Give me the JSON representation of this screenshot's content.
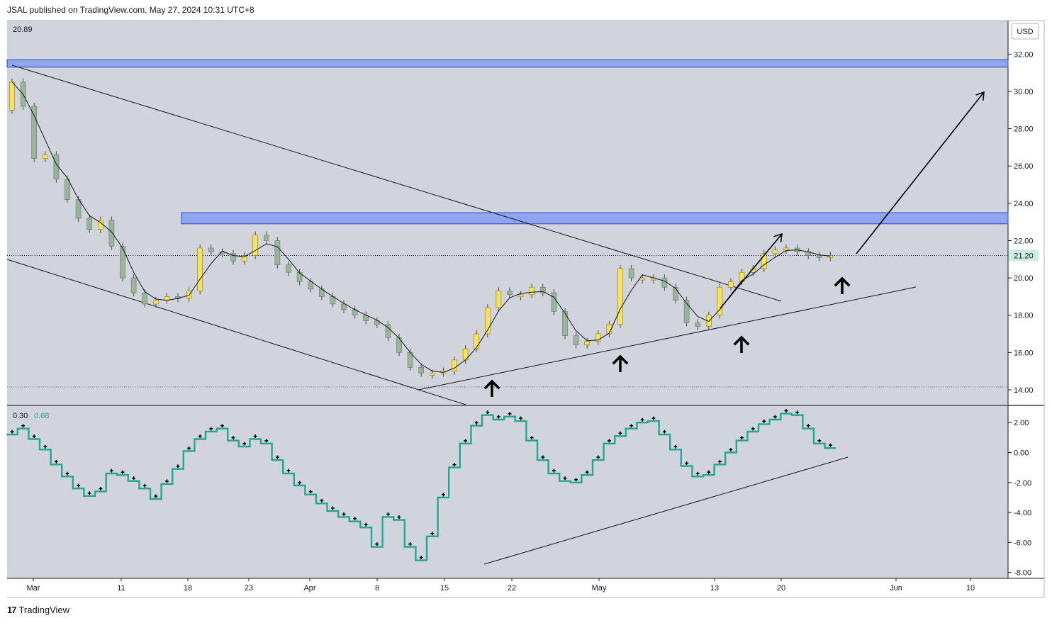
{
  "header": {
    "text": "JSAL published on TradingView.com, May 27, 2024 10:31 UTC+8"
  },
  "footer": {
    "brand": "TradingView",
    "logo_icon": "tradingview-logo-icon"
  },
  "colors": {
    "pane_bg": "#d1d4dc",
    "zone": "#8fa6ee",
    "zone_border": "#2b49c8",
    "up": "#f7e35a",
    "down": "#9bb39b",
    "indicator_line": "#22a68f",
    "grid_dotted": "#6b6b6b"
  },
  "price_pane": {
    "top_label": "20.89",
    "currency": "USD",
    "last_price": "21.20"
  },
  "indicator_pane": {
    "label_a": "0.30",
    "label_b": "0.68"
  },
  "chart_data": [
    {
      "type": "candlestick",
      "x_axis_labels": [
        "Mar",
        "11",
        "18",
        "23",
        "Apr",
        "8",
        "15",
        "22",
        "May",
        "13",
        "20",
        "Jun",
        "10"
      ],
      "y_ticks": [
        "32.00",
        "30.00",
        "28.00",
        "26.00",
        "24.00",
        "22.00",
        "20.00",
        "18.00",
        "16.00",
        "14.00"
      ],
      "ylim": [
        13.2,
        33.8
      ],
      "last_price": 21.2,
      "resistance_zones": [
        [
          31.3,
          31.7
        ],
        [
          22.9,
          23.5
        ]
      ],
      "close_series": [
        30.5,
        29.2,
        26.4,
        26.6,
        25.3,
        24.2,
        23.2,
        22.6,
        23.1,
        21.7,
        20.0,
        19.2,
        18.6,
        18.8,
        19.0,
        18.9,
        19.3,
        21.6,
        21.4,
        21.3,
        20.9,
        21.2,
        22.3,
        22.0,
        20.7,
        20.3,
        19.8,
        19.4,
        19.0,
        18.6,
        18.3,
        18.0,
        17.7,
        17.5,
        16.8,
        16.0,
        15.2,
        14.9,
        14.9,
        15.0,
        15.6,
        16.2,
        17.0,
        18.4,
        19.3,
        19.1,
        19.1,
        19.5,
        19.2,
        18.2,
        16.9,
        16.4,
        16.6,
        17.0,
        17.5,
        20.5,
        20.0,
        20.0,
        20.0,
        19.5,
        18.8,
        17.6,
        17.4,
        18.0,
        19.5,
        19.8,
        20.3,
        20.5,
        21.3,
        21.5,
        21.6,
        21.4,
        21.2,
        21.1,
        21.2
      ]
    },
    {
      "type": "line",
      "name": "",
      "y_ticks": [
        "2.00",
        "0.00",
        "-2.00",
        "-4.00",
        "-6.00",
        "-8.00"
      ],
      "ylim": [
        -8.4,
        3.1
      ],
      "values": [
        1.2,
        1.6,
        0.9,
        0.2,
        -0.8,
        -1.6,
        -2.4,
        -2.9,
        -2.6,
        -1.4,
        -1.5,
        -1.9,
        -2.4,
        -3.1,
        -2.1,
        -1.1,
        0.1,
        0.9,
        1.4,
        1.6,
        0.8,
        0.4,
        0.9,
        0.6,
        -0.5,
        -1.4,
        -2.2,
        -2.8,
        -3.4,
        -3.9,
        -4.3,
        -4.6,
        -5.0,
        -6.3,
        -4.3,
        -4.5,
        -6.3,
        -7.2,
        -5.6,
        -3.0,
        -1.0,
        0.6,
        1.8,
        2.5,
        2.2,
        2.4,
        2.1,
        0.8,
        -0.5,
        -1.4,
        -1.9,
        -2.0,
        -1.5,
        -0.5,
        0.6,
        1.1,
        1.6,
        2.0,
        2.1,
        1.2,
        0.2,
        -0.9,
        -1.6,
        -1.5,
        -0.8,
        0.0,
        0.8,
        1.4,
        1.9,
        2.2,
        2.6,
        2.5,
        1.6,
        0.6,
        0.3
      ]
    }
  ]
}
